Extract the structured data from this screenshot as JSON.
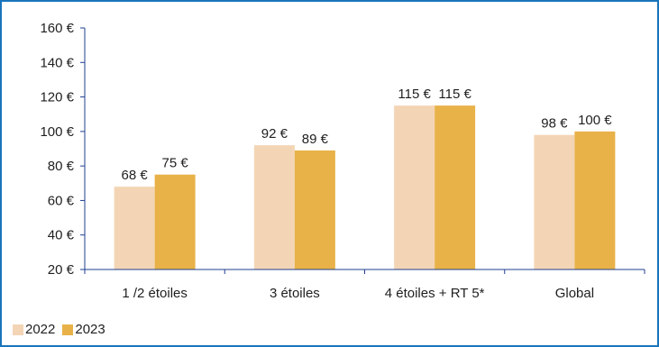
{
  "chart_data": {
    "type": "bar",
    "categories": [
      "1 /2 étoiles",
      "3 étoiles",
      "4 étoiles + RT 5*",
      "Global"
    ],
    "series": [
      {
        "name": "2022",
        "values": [
          68,
          92,
          115,
          98
        ],
        "labels": [
          "68 €",
          "92 €",
          "115 €",
          "98 €"
        ],
        "color": "#f3d5b5"
      },
      {
        "name": "2023",
        "values": [
          75,
          89,
          115,
          100
        ],
        "labels": [
          "75 €",
          "89 €",
          "115 €",
          "100 €"
        ],
        "color": "#e8b249"
      }
    ],
    "y_ticks": [
      20,
      40,
      60,
      80,
      100,
      120,
      140,
      160
    ],
    "y_tick_labels": [
      "20 €",
      "40 €",
      "60 €",
      "80 €",
      "100 €",
      "120 €",
      "140 €",
      "160 €"
    ],
    "ylim": [
      20,
      160
    ],
    "grid": false,
    "legend_position": "bottom-left",
    "frame_color": "#1a75bb",
    "axis_color": "#1f3f8f"
  }
}
